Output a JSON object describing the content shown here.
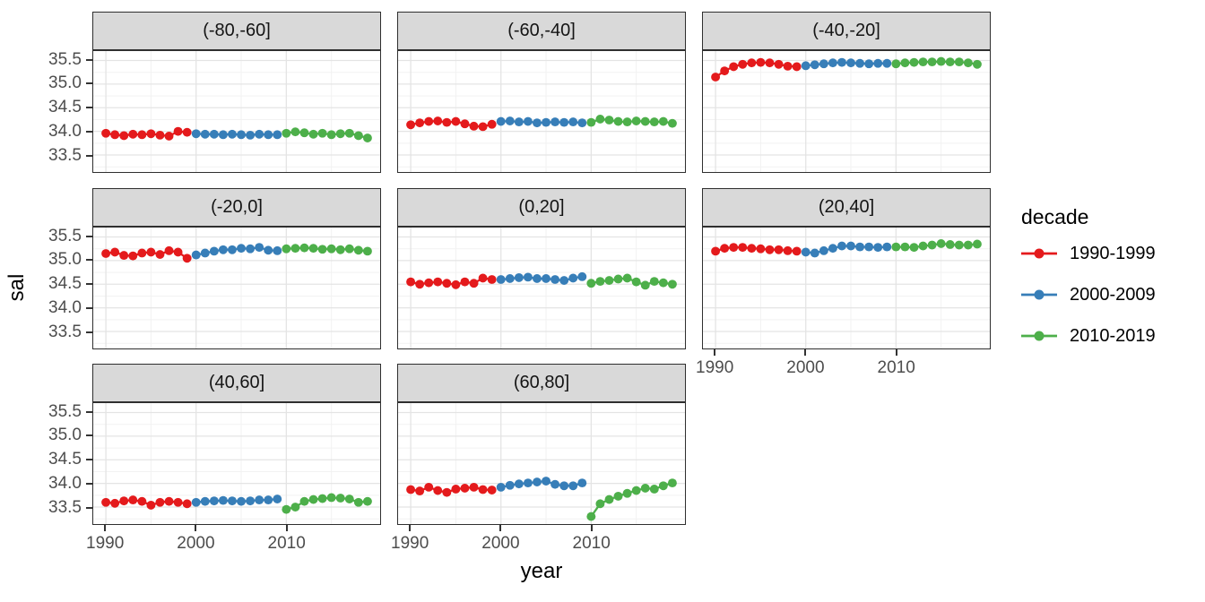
{
  "chart_data": {
    "type": "scatter",
    "geom": "point+line",
    "title": "",
    "xlabel": "year",
    "ylabel": "sal",
    "facet_variable": "latitude band",
    "x_ticks": [
      "1990",
      "2000",
      "2010"
    ],
    "x_tick_values": [
      1990,
      2000,
      2010
    ],
    "x_minor_values": [
      1995,
      2005,
      2015
    ],
    "y_ticks": [
      "35.5",
      "35.0",
      "34.5",
      "34.0",
      "33.5"
    ],
    "y_tick_values": [
      35.5,
      35.0,
      34.5,
      34.0,
      33.5
    ],
    "y_minor_values": [
      35.75,
      35.25,
      34.75,
      34.25,
      33.75,
      33.25
    ],
    "xlim": [
      1988.6,
      2020.4
    ],
    "ylim": [
      33.14,
      35.7
    ],
    "grid": true,
    "legend": {
      "title": "decade",
      "position": "right",
      "entries": [
        {
          "label": "1990-1999",
          "color": "#E41A1C"
        },
        {
          "label": "2000-2009",
          "color": "#377EB8"
        },
        {
          "label": "2010-2019",
          "color": "#4DAF4A"
        }
      ]
    },
    "facets": [
      {
        "label": "(-80,-60]",
        "series": [
          {
            "name": "1990-1999",
            "start_year": 1990,
            "values": [
              33.96,
              33.93,
              33.91,
              33.94,
              33.93,
              33.95,
              33.92,
              33.9,
              34.0,
              33.98
            ]
          },
          {
            "name": "2000-2009",
            "start_year": 2000,
            "values": [
              33.95,
              33.94,
              33.94,
              33.93,
              33.94,
              33.93,
              33.92,
              33.94,
              33.93,
              33.93
            ]
          },
          {
            "name": "2010-2019",
            "start_year": 2010,
            "values": [
              33.96,
              33.99,
              33.97,
              33.94,
              33.96,
              33.93,
              33.95,
              33.96,
              33.91,
              33.86
            ]
          }
        ]
      },
      {
        "label": "(-60,-40]",
        "series": [
          {
            "name": "1990-1999",
            "start_year": 1990,
            "values": [
              34.14,
              34.18,
              34.21,
              34.22,
              34.19,
              34.21,
              34.16,
              34.11,
              34.1,
              34.15
            ]
          },
          {
            "name": "2000-2009",
            "start_year": 2000,
            "values": [
              34.21,
              34.22,
              34.2,
              34.21,
              34.18,
              34.19,
              34.2,
              34.19,
              34.2,
              34.18
            ]
          },
          {
            "name": "2010-2019",
            "start_year": 2010,
            "values": [
              34.19,
              34.26,
              34.24,
              34.21,
              34.2,
              34.22,
              34.21,
              34.2,
              34.21,
              34.17
            ]
          }
        ]
      },
      {
        "label": "(-40,-20]",
        "series": [
          {
            "name": "1990-1999",
            "start_year": 1990,
            "values": [
              35.15,
              35.28,
              35.37,
              35.42,
              35.45,
              35.46,
              35.45,
              35.42,
              35.38,
              35.37
            ]
          },
          {
            "name": "2000-2009",
            "start_year": 2000,
            "values": [
              35.39,
              35.41,
              35.43,
              35.45,
              35.46,
              35.45,
              35.44,
              35.43,
              35.44,
              35.44
            ]
          },
          {
            "name": "2010-2019",
            "start_year": 2010,
            "values": [
              35.43,
              35.45,
              35.46,
              35.47,
              35.47,
              35.48,
              35.47,
              35.47,
              35.45,
              35.42
            ]
          }
        ]
      },
      {
        "label": "(-20,0]",
        "series": [
          {
            "name": "1990-1999",
            "start_year": 1990,
            "values": [
              35.15,
              35.18,
              35.11,
              35.1,
              35.16,
              35.18,
              35.13,
              35.21,
              35.18,
              35.05
            ]
          },
          {
            "name": "2000-2009",
            "start_year": 2000,
            "values": [
              35.12,
              35.16,
              35.2,
              35.23,
              35.23,
              35.26,
              35.25,
              35.28,
              35.22,
              35.21
            ]
          },
          {
            "name": "2010-2019",
            "start_year": 2010,
            "values": [
              35.25,
              35.26,
              35.27,
              35.26,
              35.24,
              35.25,
              35.23,
              35.25,
              35.22,
              35.2
            ]
          }
        ]
      },
      {
        "label": "(0,20]",
        "series": [
          {
            "name": "1990-1999",
            "start_year": 1990,
            "values": [
              34.55,
              34.5,
              34.53,
              34.55,
              34.52,
              34.49,
              34.55,
              34.52,
              34.63,
              34.6
            ]
          },
          {
            "name": "2000-2009",
            "start_year": 2000,
            "values": [
              34.6,
              34.62,
              34.64,
              34.65,
              34.62,
              34.62,
              34.6,
              34.58,
              34.63,
              34.66
            ]
          },
          {
            "name": "2010-2019",
            "start_year": 2010,
            "values": [
              34.52,
              34.56,
              34.58,
              34.61,
              34.63,
              34.55,
              34.48,
              34.56,
              34.53,
              34.5
            ]
          }
        ]
      },
      {
        "label": "(20,40]",
        "series": [
          {
            "name": "1990-1999",
            "start_year": 1990,
            "values": [
              35.2,
              35.26,
              35.28,
              35.28,
              35.26,
              35.25,
              35.23,
              35.23,
              35.21,
              35.2
            ]
          },
          {
            "name": "2000-2009",
            "start_year": 2000,
            "values": [
              35.18,
              35.16,
              35.21,
              35.26,
              35.31,
              35.31,
              35.29,
              35.29,
              35.28,
              35.29
            ]
          },
          {
            "name": "2010-2019",
            "start_year": 2010,
            "values": [
              35.29,
              35.29,
              35.28,
              35.31,
              35.33,
              35.36,
              35.34,
              35.33,
              35.33,
              35.35
            ]
          }
        ]
      },
      {
        "label": "(40,60]",
        "series": [
          {
            "name": "1990-1999",
            "start_year": 1990,
            "values": [
              33.6,
              33.58,
              33.63,
              33.65,
              33.62,
              33.54,
              33.6,
              33.62,
              33.6,
              33.57
            ]
          },
          {
            "name": "2000-2009",
            "start_year": 2000,
            "values": [
              33.6,
              33.62,
              33.63,
              33.64,
              33.63,
              33.62,
              33.63,
              33.65,
              33.65,
              33.67
            ]
          },
          {
            "name": "2010-2019",
            "start_year": 2010,
            "values": [
              33.45,
              33.5,
              33.62,
              33.66,
              33.68,
              33.7,
              33.69,
              33.67,
              33.6,
              33.62
            ]
          }
        ]
      },
      {
        "label": "(60,80]",
        "series": [
          {
            "name": "1990-1999",
            "start_year": 1990,
            "values": [
              33.87,
              33.84,
              33.92,
              33.85,
              33.81,
              33.88,
              33.9,
              33.92,
              33.87,
              33.86
            ]
          },
          {
            "name": "2000-2009",
            "start_year": 2000,
            "values": [
              33.92,
              33.96,
              33.99,
              34.01,
              34.03,
              34.05,
              33.98,
              33.95,
              33.95,
              34.01
            ]
          },
          {
            "name": "2010-2019",
            "start_year": 2010,
            "values": [
              33.3,
              33.57,
              33.66,
              33.73,
              33.79,
              33.85,
              33.9,
              33.88,
              33.95,
              34.01
            ]
          }
        ]
      }
    ]
  },
  "style": {
    "background": "#FFFFFF",
    "strip_fill": "#D9D9D9",
    "panel_border": "#2F2F2F",
    "grid_major": "#E4E4E4",
    "grid_minor": "#F2F2F2",
    "tick_text": "#4D4D4D"
  }
}
